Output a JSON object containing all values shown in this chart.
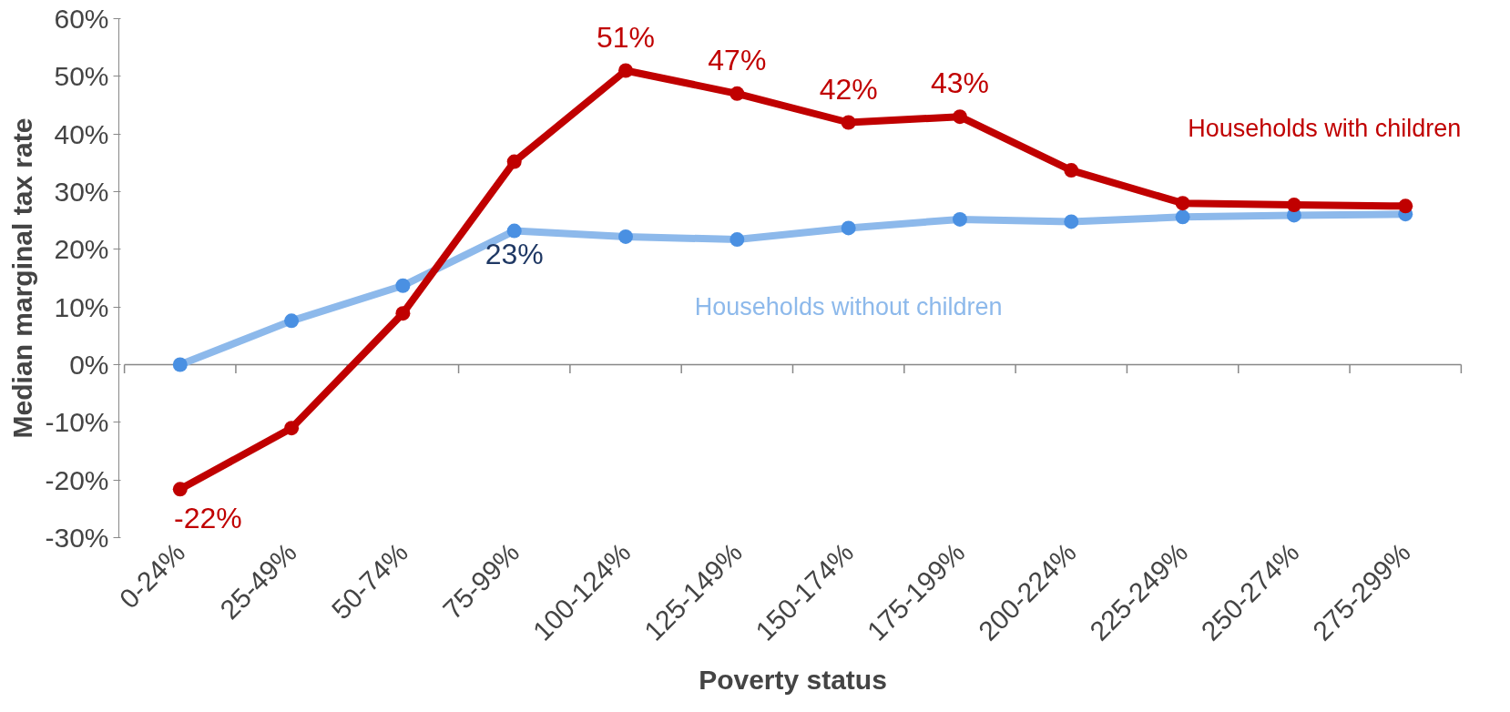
{
  "chart_data": {
    "type": "line",
    "xlabel": "Poverty status",
    "ylabel": "Median marginal tax rate",
    "categories": [
      "0-24%",
      "25-49%",
      "50-74%",
      "75-99%",
      "100-124%",
      "125-149%",
      "150-174%",
      "175-199%",
      "200-224%",
      "225-249%",
      "250-274%",
      "275-299%"
    ],
    "series": [
      {
        "name": "Households without children",
        "color": "#8db9eb",
        "values": [
          0,
          7.6,
          13.7,
          23.2,
          22.2,
          21.7,
          23.7,
          25.2,
          24.8,
          25.6,
          25.9,
          26.1
        ],
        "value_labels": [
          null,
          null,
          null,
          "23%",
          null,
          null,
          null,
          null,
          null,
          null,
          null,
          null
        ]
      },
      {
        "name": "Households with children",
        "color": "#c00000",
        "values": [
          -21.6,
          -11,
          8.9,
          35.2,
          51,
          47,
          42,
          43,
          33.7,
          28,
          27.7,
          27.5
        ],
        "value_labels": [
          "-22%",
          null,
          null,
          null,
          "51%",
          "47%",
          "42%",
          "43%",
          null,
          null,
          null,
          null
        ]
      }
    ],
    "ylim": [
      -30,
      60
    ],
    "yticks": [
      {
        "value": -30,
        "label": "-30%"
      },
      {
        "value": -20,
        "label": "-20%"
      },
      {
        "value": -10,
        "label": "-10%"
      },
      {
        "value": 0,
        "label": "0%"
      },
      {
        "value": 10,
        "label": "10%"
      },
      {
        "value": 20,
        "label": "20%"
      },
      {
        "value": 30,
        "label": "30%"
      },
      {
        "value": 40,
        "label": "40%"
      },
      {
        "value": 50,
        "label": "50%"
      },
      {
        "value": 60,
        "label": "60%"
      }
    ],
    "ref_lines": [
      {
        "axis": "y",
        "value": 0,
        "color": "#888888"
      }
    ],
    "grid": false,
    "marker": "circle",
    "line_style": "solid"
  }
}
